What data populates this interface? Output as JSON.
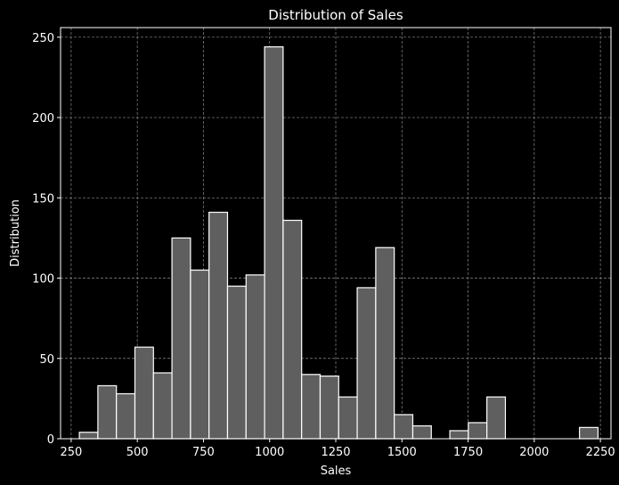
{
  "chart_data": {
    "type": "bar",
    "title": "Distribution of Sales",
    "xlabel": "Sales",
    "ylabel": "Distribution",
    "xlim": [
      210,
      2290
    ],
    "ylim": [
      0,
      256
    ],
    "x_ticks": [
      250,
      500,
      750,
      1000,
      1250,
      1500,
      1750,
      2000,
      2250
    ],
    "y_ticks": [
      0,
      50,
      100,
      150,
      200,
      250
    ],
    "grid": true,
    "bin_edges": [
      281,
      351,
      421,
      491,
      561,
      631,
      701,
      771,
      841,
      911,
      981,
      1051,
      1121,
      1191,
      1261,
      1331,
      1401,
      1471,
      1541,
      1611,
      1681,
      1751,
      1821,
      1891,
      1961,
      2031,
      2101,
      2171,
      2241
    ],
    "values": [
      4,
      33,
      28,
      57,
      41,
      125,
      105,
      141,
      95,
      102,
      244,
      136,
      40,
      39,
      26,
      94,
      119,
      15,
      8,
      0,
      5,
      10,
      26,
      0,
      0,
      0,
      0,
      7
    ],
    "bar_color": "#5f5f5f",
    "edge_color": "#ffffff",
    "background": "#000000"
  }
}
